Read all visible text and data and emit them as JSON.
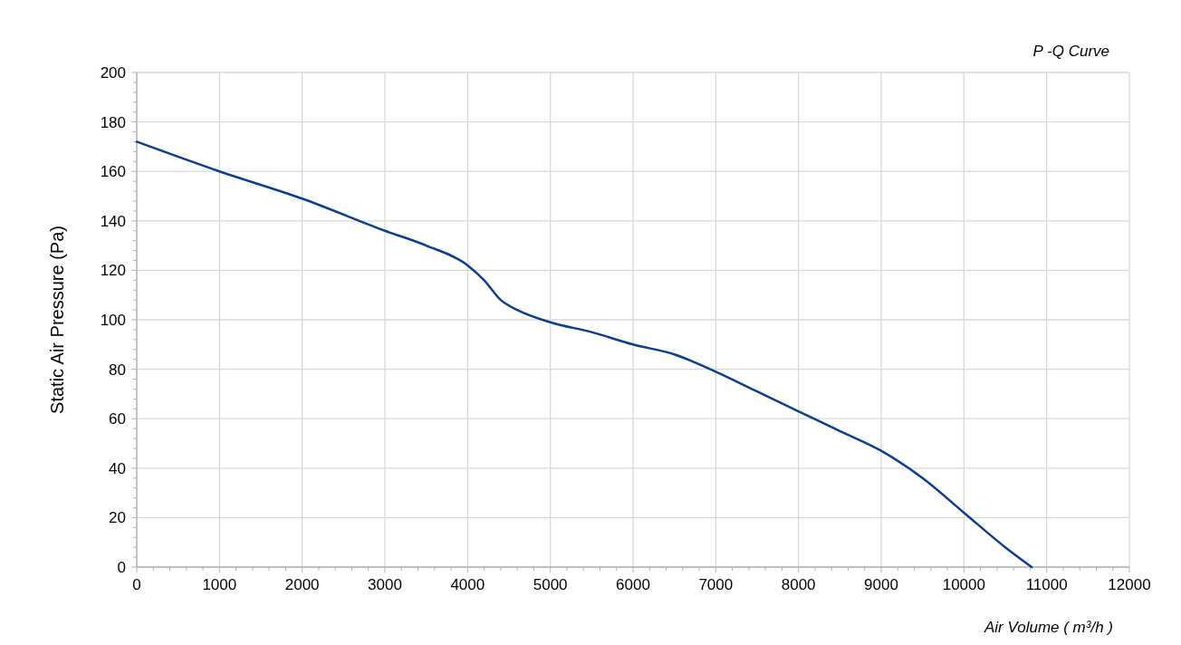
{
  "chart_data": {
    "type": "line",
    "title": "P -Q Curve",
    "xlabel": "Air Volume ( m³/h )",
    "ylabel": "Static Air Pressure  (Pa)",
    "series": [
      {
        "color": "#0a3f94",
        "x": [
          0,
          1000,
          2000,
          3000,
          3500,
          4000,
          4200,
          4400,
          4600,
          5000,
          5500,
          6000,
          6500,
          7000,
          7500,
          8000,
          8500,
          9000,
          9500,
          10000,
          10500,
          10820
        ],
        "values": [
          172,
          160,
          149,
          136,
          130,
          122,
          116,
          108,
          104,
          99,
          95,
          90,
          86,
          79,
          71,
          63,
          55,
          47,
          36,
          22,
          8,
          0
        ]
      }
    ],
    "xlim": [
      0,
      12000
    ],
    "ylim": [
      0,
      200
    ],
    "xticks": [
      0,
      {
        "value": 200,
        "label": null
      },
      {
        "value": 400,
        "label": null
      },
      {
        "value": 600,
        "label": null
      },
      {
        "value": 800,
        "label": null
      },
      1000,
      {
        "value": 1200,
        "label": null
      },
      {
        "value": 1400,
        "label": null
      },
      {
        "value": 1600,
        "label": null
      },
      {
        "value": 1800,
        "label": null
      },
      2000,
      {
        "value": 2200,
        "label": null
      },
      {
        "value": 2400,
        "label": null
      },
      {
        "value": 2600,
        "label": null
      },
      {
        "value": 2800,
        "label": null
      },
      3000,
      {
        "value": 3200,
        "label": null
      },
      {
        "value": 3400,
        "label": null
      },
      {
        "value": 3600,
        "label": null
      },
      {
        "value": 3800,
        "label": null
      },
      4000,
      {
        "value": 4200,
        "label": null
      },
      {
        "value": 4400,
        "label": null
      },
      {
        "value": 4600,
        "label": null
      },
      {
        "value": 4800,
        "label": null
      },
      5000,
      {
        "value": 5200,
        "label": null
      },
      {
        "value": 5400,
        "label": null
      },
      {
        "value": 5600,
        "label": null
      },
      {
        "value": 5800,
        "label": null
      },
      6000,
      {
        "value": 6200,
        "label": null
      },
      {
        "value": 6400,
        "label": null
      },
      {
        "value": 6600,
        "label": null
      },
      {
        "value": 6800,
        "label": null
      },
      7000,
      {
        "value": 7200,
        "label": null
      },
      {
        "value": 7400,
        "label": null
      },
      {
        "value": 7600,
        "label": null
      },
      {
        "value": 7800,
        "label": null
      },
      8000,
      {
        "value": 8200,
        "label": null
      },
      {
        "value": 8400,
        "label": null
      },
      {
        "value": 8600,
        "label": null
      },
      {
        "value": 8800,
        "label": null
      },
      9000,
      {
        "value": 9200,
        "label": null
      },
      {
        "value": 9400,
        "label": null
      },
      {
        "value": 9600,
        "label": null
      },
      {
        "value": 9800,
        "label": null
      },
      10000,
      {
        "value": 10200,
        "label": null
      },
      {
        "value": 10400,
        "label": null
      },
      {
        "value": 10600,
        "label": null
      },
      {
        "value": 10800,
        "label": null
      },
      11000,
      {
        "value": 11200,
        "label": null
      },
      {
        "value": 11400,
        "label": null
      },
      {
        "value": 11600,
        "label": null
      },
      {
        "value": 11800,
        "label": null
      },
      12000
    ],
    "yticks": [
      0,
      {
        "value": 4,
        "label": null
      },
      {
        "value": 8,
        "label": null
      },
      {
        "value": 12,
        "label": null
      },
      {
        "value": 16,
        "label": null
      },
      20,
      {
        "value": 24,
        "label": null
      },
      {
        "value": 28,
        "label": null
      },
      {
        "value": 32,
        "label": null
      },
      {
        "value": 36,
        "label": null
      },
      40,
      {
        "value": 44,
        "label": null
      },
      {
        "value": 48,
        "label": null
      },
      {
        "value": 52,
        "label": null
      },
      {
        "value": 56,
        "label": null
      },
      60,
      {
        "value": 64,
        "label": null
      },
      {
        "value": 68,
        "label": null
      },
      {
        "value": 72,
        "label": null
      },
      {
        "value": 76,
        "label": null
      },
      80,
      {
        "value": 84,
        "label": null
      },
      {
        "value": 88,
        "label": null
      },
      {
        "value": 92,
        "label": null
      },
      {
        "value": 96,
        "label": null
      },
      100,
      {
        "value": 104,
        "label": null
      },
      {
        "value": 108,
        "label": null
      },
      {
        "value": 112,
        "label": null
      },
      {
        "value": 116,
        "label": null
      },
      120,
      {
        "value": 124,
        "label": null
      },
      {
        "value": 128,
        "label": null
      },
      {
        "value": 132,
        "label": null
      },
      {
        "value": 136,
        "label": null
      },
      140,
      {
        "value": 144,
        "label": null
      },
      {
        "value": 148,
        "label": null
      },
      {
        "value": 152,
        "label": null
      },
      {
        "value": 156,
        "label": null
      },
      160,
      {
        "value": 164,
        "label": null
      },
      {
        "value": 168,
        "label": null
      },
      {
        "value": 172,
        "label": null
      },
      {
        "value": 176,
        "label": null
      },
      180,
      {
        "value": 184,
        "label": null
      },
      {
        "value": 188,
        "label": null
      },
      {
        "value": 192,
        "label": null
      },
      {
        "value": 196,
        "label": null
      },
      200
    ],
    "grid": true,
    "marker": "none",
    "line_style": "solid"
  }
}
